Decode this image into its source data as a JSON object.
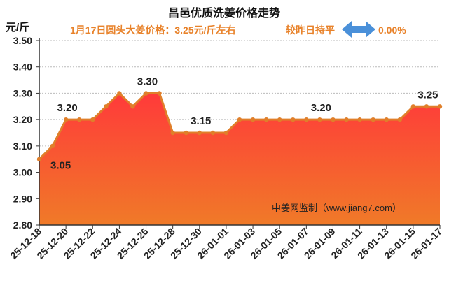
{
  "header": {
    "title": "昌邑优质洗姜价格走势",
    "unit": "元/斤",
    "price_text": "1月17日圆头大姜价格：3.25元/斤左右",
    "compare_label": "较昨日持平",
    "compare_value": "0.00%"
  },
  "watermark": "中姜网监制（www.jiang7.com）",
  "colors": {
    "title": "#111111",
    "accent_text": "#e8822a",
    "line": "#e07f2a",
    "area_top": "#ff3a3a",
    "area_bottom": "#f07a28",
    "arrow": "#4a90d9",
    "grid": "#bbbbbb"
  },
  "icons": {
    "compare": "double-arrow-icon"
  },
  "chart_data": {
    "type": "area",
    "title": "昌邑优质洗姜价格走势",
    "ylabel": "元/斤",
    "ylim": [
      2.8,
      3.5
    ],
    "yticks": [
      "3.50",
      "3.40",
      "3.30",
      "3.20",
      "3.10",
      "3.00",
      "2.90",
      "2.80"
    ],
    "grid": true,
    "x": [
      "25-12-18",
      "25-12-19",
      "25-12-20",
      "25-12-21",
      "25-12-22",
      "25-12-23",
      "25-12-24",
      "25-12-25",
      "25-12-26",
      "25-12-27",
      "25-12-28",
      "25-12-29",
      "25-12-30",
      "25-12-31",
      "26-01-01",
      "26-01-02",
      "26-01-03",
      "26-01-04",
      "26-01-05",
      "26-01-06",
      "26-01-07",
      "26-01-08",
      "26-01-09",
      "26-01-10",
      "26-01-11",
      "26-01-12",
      "26-01-13",
      "26-01-14",
      "26-01-15",
      "26-01-16",
      "26-01-17"
    ],
    "xtick_labels": [
      "25-12-18",
      "25-12-20",
      "25-12-22",
      "25-12-24",
      "25-12-26",
      "25-12-28",
      "25-12-30",
      "26-01-01",
      "26-01-03",
      "26-01-05",
      "26-01-07",
      "26-01-09",
      "26-01-11",
      "26-01-13",
      "26-01-15",
      "26-01-17"
    ],
    "values": [
      3.05,
      3.1,
      3.2,
      3.2,
      3.2,
      3.25,
      3.3,
      3.25,
      3.3,
      3.3,
      3.15,
      3.15,
      3.15,
      3.15,
      3.15,
      3.2,
      3.2,
      3.2,
      3.2,
      3.2,
      3.2,
      3.2,
      3.2,
      3.2,
      3.2,
      3.2,
      3.2,
      3.2,
      3.25,
      3.25,
      3.25
    ],
    "data_labels": [
      {
        "index": 0,
        "text": "3.05"
      },
      {
        "index": 2,
        "text": "3.20"
      },
      {
        "index": 8,
        "text": "3.30"
      },
      {
        "index": 12,
        "text": "3.15"
      },
      {
        "index": 21,
        "text": "3.20"
      },
      {
        "index": 29,
        "text": "3.25"
      }
    ]
  }
}
